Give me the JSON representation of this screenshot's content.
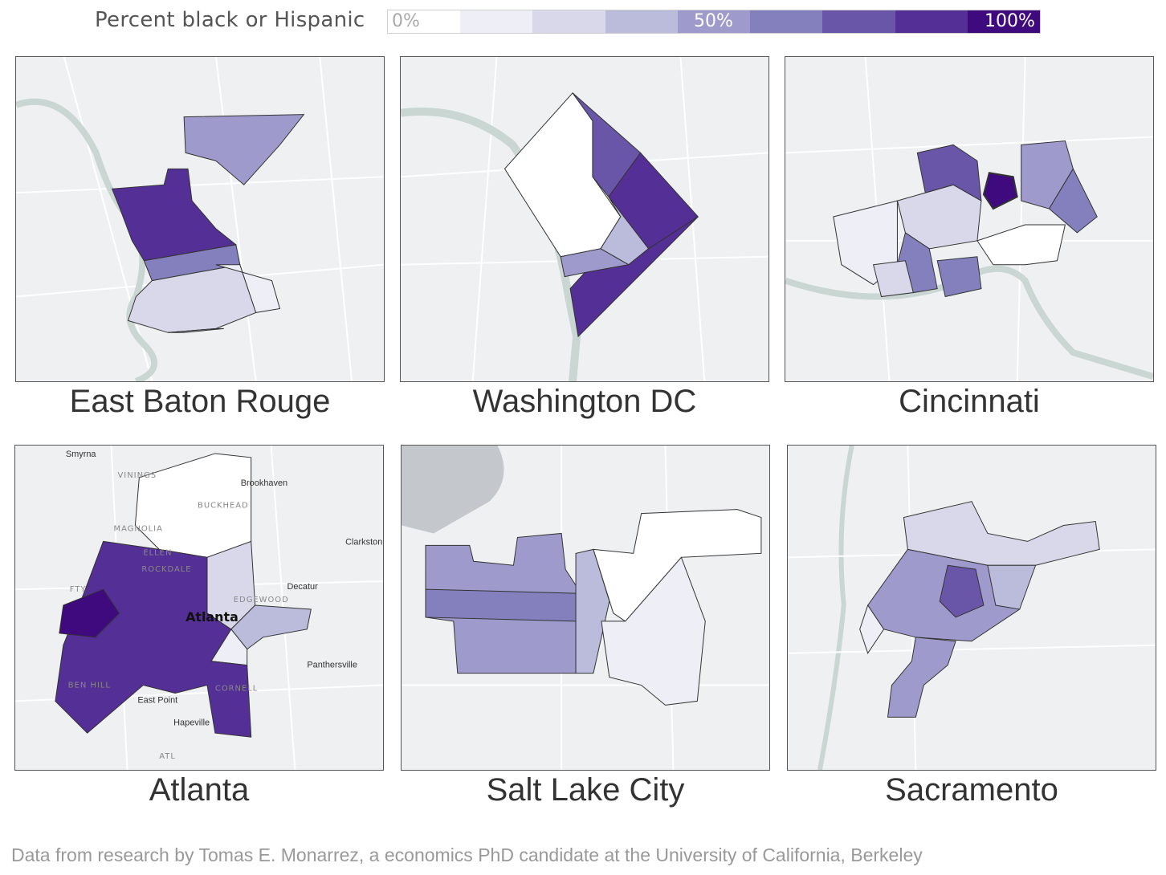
{
  "legend": {
    "title": "Percent black or Hispanic",
    "ticks": [
      "0%",
      "50%",
      "100%"
    ],
    "swatches": [
      "#ffffff",
      "#eeeef6",
      "#d8d8ea",
      "#bbbbdb",
      "#9e9acb",
      "#8480bd",
      "#6a56a8",
      "#542f95",
      "#3f0a7e"
    ]
  },
  "colors": {
    "water": "#c9d6d2",
    "land": "#eef0f2",
    "road": "#ffffff",
    "boundary": "#333333"
  },
  "maps": [
    {
      "city": "East Baton Rouge",
      "places": []
    },
    {
      "city": "Washington DC",
      "places": []
    },
    {
      "city": "Cincinnati",
      "places": []
    },
    {
      "city": "Atlanta",
      "places": [
        "Smyrna",
        "VININGS",
        "Brookhaven",
        "BUCKHEAD",
        "MAGNOLIA",
        "Clarkston",
        "FTY",
        "ELLEN",
        "ROCKDALE",
        "Decatur",
        "EDGEWOOD",
        "Atlanta",
        "Panthersville",
        "BEN HILL",
        "CORNELL",
        "East Point",
        "Hapeville",
        "ATL"
      ]
    },
    {
      "city": "Salt Lake City",
      "places": []
    },
    {
      "city": "Sacramento",
      "places": []
    }
  ],
  "footer": "Data from research by Tomas E. Monarrez, a economics PhD candidate at the University of California, Berkeley"
}
